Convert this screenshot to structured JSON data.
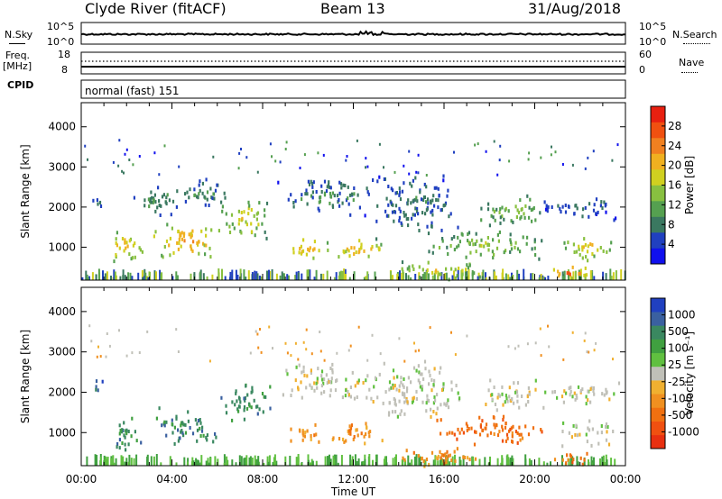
{
  "header": {
    "station": "Clyde River (fitACF)",
    "beam": "Beam 13",
    "date": "31/Aug/2018"
  },
  "top_panels": {
    "nsky_label": "N.Sky",
    "nsky_ticks": [
      "10^5",
      "10^0"
    ],
    "nsearch_label": "N.Search",
    "nsearch_ticks": [
      "10^5",
      "10^0"
    ],
    "freq_label": "Freq.",
    "freq_unit": "[MHz]",
    "freq_ticks": [
      "18",
      "8"
    ],
    "nave_label": "Nave",
    "nave_ticks": [
      "60",
      "0"
    ],
    "cpid_label": "CPID",
    "cpid_value": "normal (fast) 151"
  },
  "chart_data": [
    {
      "type": "heatmap",
      "title": "Power",
      "ylabel": "Slant Range [km]",
      "ylim": [
        180,
        4600
      ],
      "yticks": [
        1000,
        2000,
        3000,
        4000
      ],
      "xlim": [
        0,
        24
      ],
      "colorbar": {
        "label": "Power [dB]",
        "ticks": [
          "4",
          "8",
          "12",
          "16",
          "20",
          "24",
          "28"
        ],
        "range": [
          0,
          32
        ],
        "colors": [
          "#1010ee",
          "#2040c0",
          "#3a7860",
          "#55a050",
          "#88c040",
          "#d0d020",
          "#f0b020",
          "#f08020",
          "#f05010",
          "#e82010"
        ]
      },
      "echo_regions": [
        {
          "t": [
            0.3,
            1.0
          ],
          "r": [
            1950,
            2350
          ],
          "level": 6
        },
        {
          "t": [
            1.0,
            2.8
          ],
          "r": [
            600,
            1500
          ],
          "level": 18
        },
        {
          "t": [
            2.0,
            5.0
          ],
          "r": [
            1800,
            2600
          ],
          "level": 9
        },
        {
          "t": [
            3.0,
            6.2
          ],
          "r": [
            700,
            1700
          ],
          "level": 20
        },
        {
          "t": [
            6.0,
            8.4
          ],
          "r": [
            1200,
            2300
          ],
          "level": 16
        },
        {
          "t": [
            4.5,
            6.5
          ],
          "r": [
            1900,
            2800
          ],
          "level": 8
        },
        {
          "t": [
            9.0,
            10.8
          ],
          "r": [
            700,
            1300
          ],
          "level": 20
        },
        {
          "t": [
            8.5,
            13.0
          ],
          "r": [
            1800,
            2800
          ],
          "level": 8
        },
        {
          "t": [
            10.5,
            13.5
          ],
          "r": [
            700,
            1300
          ],
          "level": 18
        },
        {
          "t": [
            12.5,
            17.0
          ],
          "r": [
            1300,
            2900
          ],
          "level": 7
        },
        {
          "t": [
            13.5,
            18.0
          ],
          "r": [
            200,
            700
          ],
          "level": 16
        },
        {
          "t": [
            15.0,
            20.5
          ],
          "r": [
            700,
            1500
          ],
          "level": 13
        },
        {
          "t": [
            17.5,
            20.5
          ],
          "r": [
            1500,
            2400
          ],
          "level": 12
        },
        {
          "t": [
            20.0,
            24.0
          ],
          "r": [
            1700,
            2300
          ],
          "level": 6
        },
        {
          "t": [
            20.5,
            22.5
          ],
          "r": [
            200,
            600
          ],
          "level": 24
        },
        {
          "t": [
            21.0,
            23.5
          ],
          "r": [
            700,
            1400
          ],
          "level": 17
        }
      ]
    },
    {
      "type": "heatmap",
      "title": "Velocity",
      "ylabel": "Slant Range [km]",
      "ylim": [
        180,
        4600
      ],
      "yticks": [
        1000,
        2000,
        3000,
        4000
      ],
      "xlabel": "Time UT",
      "xlim": [
        0,
        24
      ],
      "xticks": [
        "00:00",
        "04:00",
        "08:00",
        "12:00",
        "16:00",
        "20:00",
        "00:00"
      ],
      "colorbar": {
        "label": "Velocity [m s⁻¹]",
        "ticks": [
          "1000",
          "500",
          "100",
          "25",
          "-25",
          "-100",
          "-500",
          "-1000"
        ],
        "colors": [
          "#2040c0",
          "#3a60a0",
          "#3a8860",
          "#40a040",
          "#60c040",
          "#c0c0b8",
          "#f0b030",
          "#f09020",
          "#f07010",
          "#f05010",
          "#e83010"
        ]
      },
      "echo_regions": [
        {
          "t": [
            0.3,
            1.0
          ],
          "r": [
            1950,
            2350
          ],
          "level": 1
        },
        {
          "t": [
            1.0,
            2.8
          ],
          "r": [
            600,
            1500
          ],
          "level": 2
        },
        {
          "t": [
            3.0,
            6.2
          ],
          "r": [
            700,
            1700
          ],
          "level": 2
        },
        {
          "t": [
            6.0,
            8.4
          ],
          "r": [
            1200,
            2300
          ],
          "level": 2
        },
        {
          "t": [
            8.5,
            13.0
          ],
          "r": [
            1800,
            2800
          ],
          "level": 5
        },
        {
          "t": [
            9.0,
            10.8
          ],
          "r": [
            700,
            1300
          ],
          "level": 7
        },
        {
          "t": [
            10.5,
            13.5
          ],
          "r": [
            700,
            1300
          ],
          "level": 7
        },
        {
          "t": [
            12.5,
            17.0
          ],
          "r": [
            1300,
            2900
          ],
          "level": 5
        },
        {
          "t": [
            13.5,
            18.0
          ],
          "r": [
            200,
            700
          ],
          "level": 7
        },
        {
          "t": [
            15.0,
            20.5
          ],
          "r": [
            700,
            1500
          ],
          "level": 8
        },
        {
          "t": [
            17.5,
            20.5
          ],
          "r": [
            1500,
            2400
          ],
          "level": 5
        },
        {
          "t": [
            20.0,
            24.0
          ],
          "r": [
            1700,
            2300
          ],
          "level": 5
        },
        {
          "t": [
            20.5,
            22.5
          ],
          "r": [
            200,
            600
          ],
          "level": 8
        },
        {
          "t": [
            21.0,
            23.5
          ],
          "r": [
            700,
            1400
          ],
          "level": 5
        }
      ]
    }
  ]
}
